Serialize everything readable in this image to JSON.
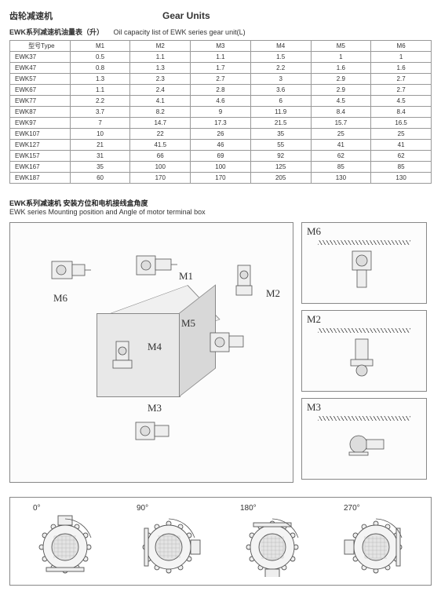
{
  "header": {
    "left_title_cn": "齿轮减速机",
    "center_title_en": "Gear Units"
  },
  "oil_table": {
    "caption_cn": "EWK系列减速机油量表（升）",
    "caption_en": "Oil capacity list of EWK series gear unit(L)",
    "col0_header": "型号Type",
    "columns": [
      "M1",
      "M2",
      "M3",
      "M4",
      "M5",
      "M6"
    ],
    "rows": [
      {
        "type": "EWK37",
        "v": [
          "0.5",
          "1.1",
          "1.1",
          "1.5",
          "1",
          "1"
        ]
      },
      {
        "type": "EWK47",
        "v": [
          "0.8",
          "1.3",
          "1.7",
          "2.2",
          "1.6",
          "1.6"
        ]
      },
      {
        "type": "EWK57",
        "v": [
          "1.3",
          "2.3",
          "2.7",
          "3",
          "2.9",
          "2.7"
        ]
      },
      {
        "type": "EWK67",
        "v": [
          "1.1",
          "2.4",
          "2.8",
          "3.6",
          "2.9",
          "2.7"
        ]
      },
      {
        "type": "EWK77",
        "v": [
          "2.2",
          "4.1",
          "4.6",
          "6",
          "4.5",
          "4.5"
        ]
      },
      {
        "type": "EWK87",
        "v": [
          "3.7",
          "8.2",
          "9",
          "11.9",
          "8.4",
          "8.4"
        ]
      },
      {
        "type": "EWK97",
        "v": [
          "7",
          "14.7",
          "17.3",
          "21.5",
          "15.7",
          "16.5"
        ]
      },
      {
        "type": "EWK107",
        "v": [
          "10",
          "22",
          "26",
          "35",
          "25",
          "25"
        ]
      },
      {
        "type": "EWK127",
        "v": [
          "21",
          "41.5",
          "46",
          "55",
          "41",
          "41"
        ]
      },
      {
        "type": "EWK157",
        "v": [
          "31",
          "66",
          "69",
          "92",
          "62",
          "62"
        ]
      },
      {
        "type": "EWK167",
        "v": [
          "35",
          "100",
          "100",
          "125",
          "85",
          "85"
        ]
      },
      {
        "type": "EWK187",
        "v": [
          "60",
          "170",
          "170",
          "205",
          "130",
          "130"
        ]
      }
    ]
  },
  "mounting": {
    "title_cn": "EWK系列减速机 安装方位和电机接线盒角度",
    "title_en": "EWK series Mounting  position and Angle of motor terminal box",
    "labels": {
      "m1": "M1",
      "m2": "M2",
      "m3": "M3",
      "m4": "M4",
      "m5": "M5",
      "m6": "M6"
    }
  },
  "angles": {
    "items": [
      {
        "deg": "0°",
        "rot": 0
      },
      {
        "deg": "90°",
        "rot": 90
      },
      {
        "deg": "180°",
        "rot": 180
      },
      {
        "deg": "270°",
        "rot": 270
      }
    ]
  },
  "colors": {
    "border": "#888888",
    "line": "#555555",
    "fill": "#e8e8e8",
    "bg": "#fcfcfc",
    "accent": "#c33"
  }
}
